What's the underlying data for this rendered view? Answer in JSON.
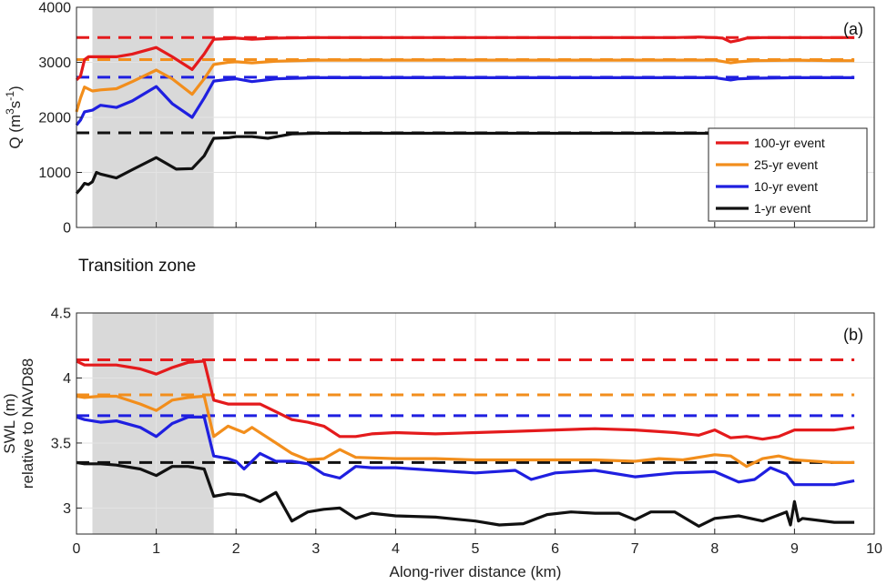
{
  "chart_data": [
    {
      "id": "a",
      "type": "line",
      "panel_label": "(a)",
      "xlim": [
        0,
        10
      ],
      "ylim": [
        0,
        4000
      ],
      "xticks": [
        0,
        1,
        2,
        3,
        4,
        5,
        6,
        7,
        8,
        9,
        10
      ],
      "yticks": [
        0,
        1000,
        2000,
        3000,
        4000
      ],
      "xtick_labels_shown": false,
      "grid": true,
      "legend_position": "right",
      "ylabel_base": "Q (m",
      "ylabel_sup1": "3",
      "ylabel_mid": "s",
      "ylabel_sup2": "-1",
      "ylabel_end": ")",
      "shaded_region": {
        "x": [
          0.2,
          1.72
        ],
        "color": "#d9d9d9"
      },
      "series": [
        {
          "name": "100-yr event",
          "color": "#e41a1c",
          "reference": 3450,
          "x": [
            0,
            0.05,
            0.1,
            0.15,
            0.2,
            0.3,
            0.5,
            0.7,
            1.0,
            1.2,
            1.45,
            1.6,
            1.72,
            1.9,
            2.0,
            2.2,
            2.5,
            3,
            4,
            5,
            6,
            7,
            7.5,
            7.8,
            8.0,
            8.1,
            8.2,
            8.3,
            8.4,
            8.6,
            9,
            9.5,
            9.75
          ],
          "y": [
            2680,
            2750,
            3050,
            3100,
            3100,
            3100,
            3100,
            3150,
            3270,
            3100,
            2870,
            3150,
            3420,
            3430,
            3440,
            3420,
            3440,
            3450,
            3450,
            3450,
            3450,
            3450,
            3450,
            3460,
            3450,
            3440,
            3370,
            3400,
            3440,
            3450,
            3450,
            3450,
            3450
          ]
        },
        {
          "name": "25-yr event",
          "color": "#f28e1c",
          "reference": 3050,
          "x": [
            0,
            0.05,
            0.1,
            0.2,
            0.3,
            0.5,
            0.7,
            1.0,
            1.2,
            1.45,
            1.6,
            1.72,
            1.9,
            2.0,
            2.2,
            2.5,
            3,
            4,
            5,
            6,
            7,
            8.0,
            8.2,
            8.3,
            8.5,
            9,
            9.5,
            9.75
          ],
          "y": [
            2100,
            2350,
            2550,
            2480,
            2500,
            2520,
            2650,
            2860,
            2700,
            2420,
            2700,
            2960,
            3000,
            3010,
            2990,
            3020,
            3040,
            3040,
            3040,
            3040,
            3040,
            3040,
            2990,
            3010,
            3030,
            3040,
            3030,
            3030
          ]
        },
        {
          "name": "10-yr event",
          "color": "#1f1fe0",
          "reference": 2730,
          "x": [
            0,
            0.05,
            0.1,
            0.2,
            0.3,
            0.5,
            0.7,
            1.0,
            1.2,
            1.45,
            1.6,
            1.72,
            1.9,
            2.0,
            2.2,
            2.5,
            3,
            4,
            5,
            6,
            7,
            8.0,
            8.2,
            8.3,
            8.5,
            9,
            9.5,
            9.75
          ],
          "y": [
            1860,
            1950,
            2100,
            2130,
            2220,
            2180,
            2300,
            2560,
            2250,
            2000,
            2350,
            2660,
            2690,
            2700,
            2650,
            2700,
            2720,
            2720,
            2720,
            2720,
            2720,
            2720,
            2680,
            2700,
            2710,
            2720,
            2720,
            2720
          ]
        },
        {
          "name": "1-yr event",
          "color": "#111111",
          "reference": 1720,
          "x": [
            0,
            0.05,
            0.1,
            0.15,
            0.2,
            0.25,
            0.3,
            0.5,
            0.7,
            1.0,
            1.25,
            1.45,
            1.6,
            1.72,
            1.9,
            2.0,
            2.2,
            2.4,
            2.7,
            3,
            4,
            5,
            6,
            7,
            8.0,
            9,
            9.5,
            9.75
          ],
          "y": [
            620,
            700,
            800,
            780,
            830,
            1000,
            970,
            900,
            1050,
            1270,
            1060,
            1070,
            1300,
            1620,
            1630,
            1650,
            1650,
            1620,
            1700,
            1710,
            1710,
            1710,
            1710,
            1710,
            1710,
            1710,
            1710,
            1710
          ]
        }
      ]
    },
    {
      "id": "b",
      "type": "line",
      "panel_label": "(b)",
      "xlim": [
        0,
        10
      ],
      "ylim": [
        2.8,
        4.5
      ],
      "xticks": [
        0,
        1,
        2,
        3,
        4,
        5,
        6,
        7,
        8,
        9,
        10
      ],
      "yticks": [
        3,
        3.5,
        4,
        4.5
      ],
      "xtick_labels_shown": true,
      "grid": true,
      "xlabel": "Along-river distance (km)",
      "ylabel_line1": "SWL (m)",
      "ylabel_line2": "relative to NAVD88",
      "shaded_region": {
        "x": [
          0.2,
          1.72
        ],
        "color": "#d9d9d9"
      },
      "series": [
        {
          "name": "100-yr event",
          "color": "#e41a1c",
          "reference": 4.14,
          "x": [
            0,
            0.1,
            0.3,
            0.5,
            0.8,
            1.0,
            1.2,
            1.4,
            1.6,
            1.72,
            1.9,
            2.1,
            2.3,
            2.5,
            2.7,
            2.9,
            3.1,
            3.3,
            3.5,
            3.7,
            4,
            4.5,
            5,
            5.5,
            6,
            6.5,
            7,
            7.5,
            7.8,
            8.0,
            8.2,
            8.4,
            8.6,
            8.8,
            9,
            9.5,
            9.75
          ],
          "y": [
            4.13,
            4.1,
            4.1,
            4.1,
            4.07,
            4.03,
            4.08,
            4.12,
            4.13,
            3.83,
            3.8,
            3.8,
            3.8,
            3.74,
            3.68,
            3.66,
            3.63,
            3.55,
            3.55,
            3.57,
            3.58,
            3.57,
            3.58,
            3.59,
            3.6,
            3.61,
            3.6,
            3.58,
            3.56,
            3.6,
            3.54,
            3.55,
            3.53,
            3.55,
            3.6,
            3.6,
            3.62
          ]
        },
        {
          "name": "25-yr event",
          "color": "#f28e1c",
          "reference": 3.87,
          "x": [
            0,
            0.1,
            0.3,
            0.5,
            0.8,
            1.0,
            1.2,
            1.4,
            1.6,
            1.72,
            1.9,
            2.1,
            2.2,
            2.5,
            2.7,
            2.9,
            3.1,
            3.3,
            3.5,
            4,
            4.5,
            5,
            5.5,
            6,
            6.5,
            7,
            7.3,
            7.6,
            8.0,
            8.2,
            8.4,
            8.6,
            8.8,
            9,
            9.5,
            9.75
          ],
          "y": [
            3.86,
            3.85,
            3.86,
            3.86,
            3.8,
            3.75,
            3.83,
            3.85,
            3.86,
            3.55,
            3.63,
            3.58,
            3.62,
            3.5,
            3.42,
            3.37,
            3.38,
            3.45,
            3.39,
            3.38,
            3.38,
            3.37,
            3.37,
            3.37,
            3.37,
            3.36,
            3.38,
            3.37,
            3.41,
            3.4,
            3.32,
            3.38,
            3.4,
            3.37,
            3.35,
            3.35
          ]
        },
        {
          "name": "10-yr event",
          "color": "#1f1fe0",
          "reference": 3.71,
          "x": [
            0,
            0.1,
            0.3,
            0.5,
            0.8,
            1.0,
            1.2,
            1.4,
            1.6,
            1.72,
            1.9,
            2.0,
            2.1,
            2.3,
            2.5,
            2.7,
            2.9,
            3.1,
            3.3,
            3.5,
            3.7,
            4,
            4.5,
            5,
            5.5,
            5.7,
            6,
            6.5,
            7,
            7.5,
            8.0,
            8.3,
            8.5,
            8.7,
            8.9,
            9,
            9.5,
            9.75
          ],
          "y": [
            3.7,
            3.68,
            3.66,
            3.67,
            3.62,
            3.55,
            3.65,
            3.7,
            3.7,
            3.4,
            3.38,
            3.36,
            3.3,
            3.42,
            3.36,
            3.36,
            3.34,
            3.26,
            3.23,
            3.32,
            3.31,
            3.31,
            3.29,
            3.27,
            3.29,
            3.22,
            3.27,
            3.29,
            3.24,
            3.27,
            3.28,
            3.2,
            3.22,
            3.31,
            3.26,
            3.18,
            3.18,
            3.21
          ]
        },
        {
          "name": "1-yr event",
          "color": "#111111",
          "reference": 3.35,
          "x": [
            0,
            0.1,
            0.3,
            0.5,
            0.8,
            1.0,
            1.2,
            1.4,
            1.6,
            1.72,
            1.9,
            2.1,
            2.3,
            2.5,
            2.7,
            2.9,
            3.1,
            3.3,
            3.5,
            3.7,
            4,
            4.5,
            5,
            5.3,
            5.6,
            5.9,
            6.2,
            6.5,
            6.8,
            7,
            7.2,
            7.5,
            7.8,
            8.0,
            8.3,
            8.6,
            8.9,
            8.95,
            9.0,
            9.05,
            9.1,
            9.5,
            9.75
          ],
          "y": [
            3.35,
            3.34,
            3.34,
            3.33,
            3.3,
            3.25,
            3.32,
            3.32,
            3.3,
            3.09,
            3.11,
            3.1,
            3.05,
            3.12,
            2.9,
            2.97,
            2.99,
            3.0,
            2.92,
            2.96,
            2.94,
            2.93,
            2.9,
            2.87,
            2.88,
            2.95,
            2.97,
            2.96,
            2.96,
            2.91,
            2.97,
            2.97,
            2.86,
            2.92,
            2.94,
            2.9,
            2.97,
            2.87,
            3.05,
            2.9,
            2.92,
            2.89,
            2.89
          ]
        }
      ]
    }
  ],
  "transition_label": "Transition zone",
  "legend": {
    "entries": [
      {
        "name": "100-yr event",
        "color": "#e41a1c"
      },
      {
        "name": "25-yr event",
        "color": "#f28e1c"
      },
      {
        "name": "10-yr event",
        "color": "#1f1fe0"
      },
      {
        "name": "1-yr event",
        "color": "#111111"
      }
    ]
  }
}
